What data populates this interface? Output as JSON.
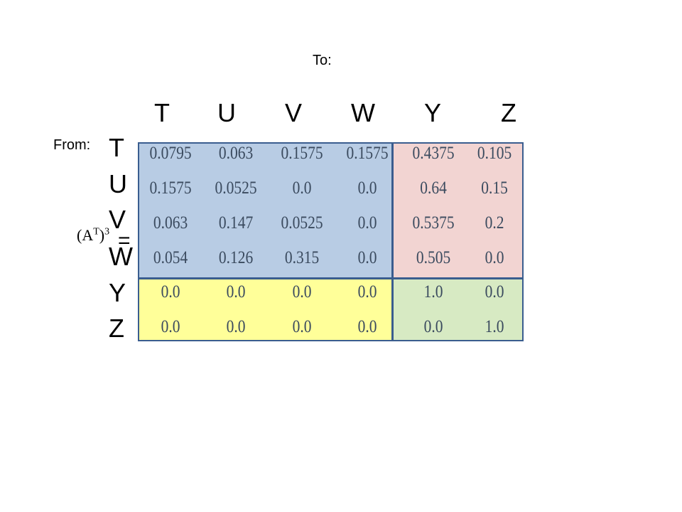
{
  "to_label": "To:",
  "from_label": "From:",
  "formula": {
    "base": "(A",
    "sup_inner": "T",
    "close": ")",
    "power": "3",
    "equals": "="
  },
  "column_headers": [
    "T",
    "U",
    "V",
    "W",
    "Y",
    "Z"
  ],
  "row_headers": [
    "T",
    "U",
    "V",
    "W",
    "Y",
    "Z"
  ],
  "matrix": [
    [
      "0.0795",
      "0.063",
      "0.1575",
      "0.1575",
      "0.4375",
      "0.105"
    ],
    [
      "0.1575",
      "0.0525",
      "0.0",
      "0.0",
      "0.64",
      "0.15"
    ],
    [
      "0.063",
      "0.147",
      "0.0525",
      "0.0",
      "0.5375",
      "0.2"
    ],
    [
      "0.054",
      "0.126",
      "0.315",
      "0.0",
      "0.505",
      "0.0"
    ],
    [
      "0.0",
      "0.0",
      "0.0",
      "0.0",
      "1.0",
      "0.0"
    ],
    [
      "0.0",
      "0.0",
      "0.0",
      "0.0",
      "0.0",
      "1.0"
    ]
  ],
  "colors": {
    "transient_block": "#b8cce4",
    "absorbing_prob_block": "#f2d4d2",
    "zero_block": "#ffff99",
    "identity_block": "#d7eac3",
    "border": "#3a5d8f",
    "value_text": "#3a4a5e"
  }
}
